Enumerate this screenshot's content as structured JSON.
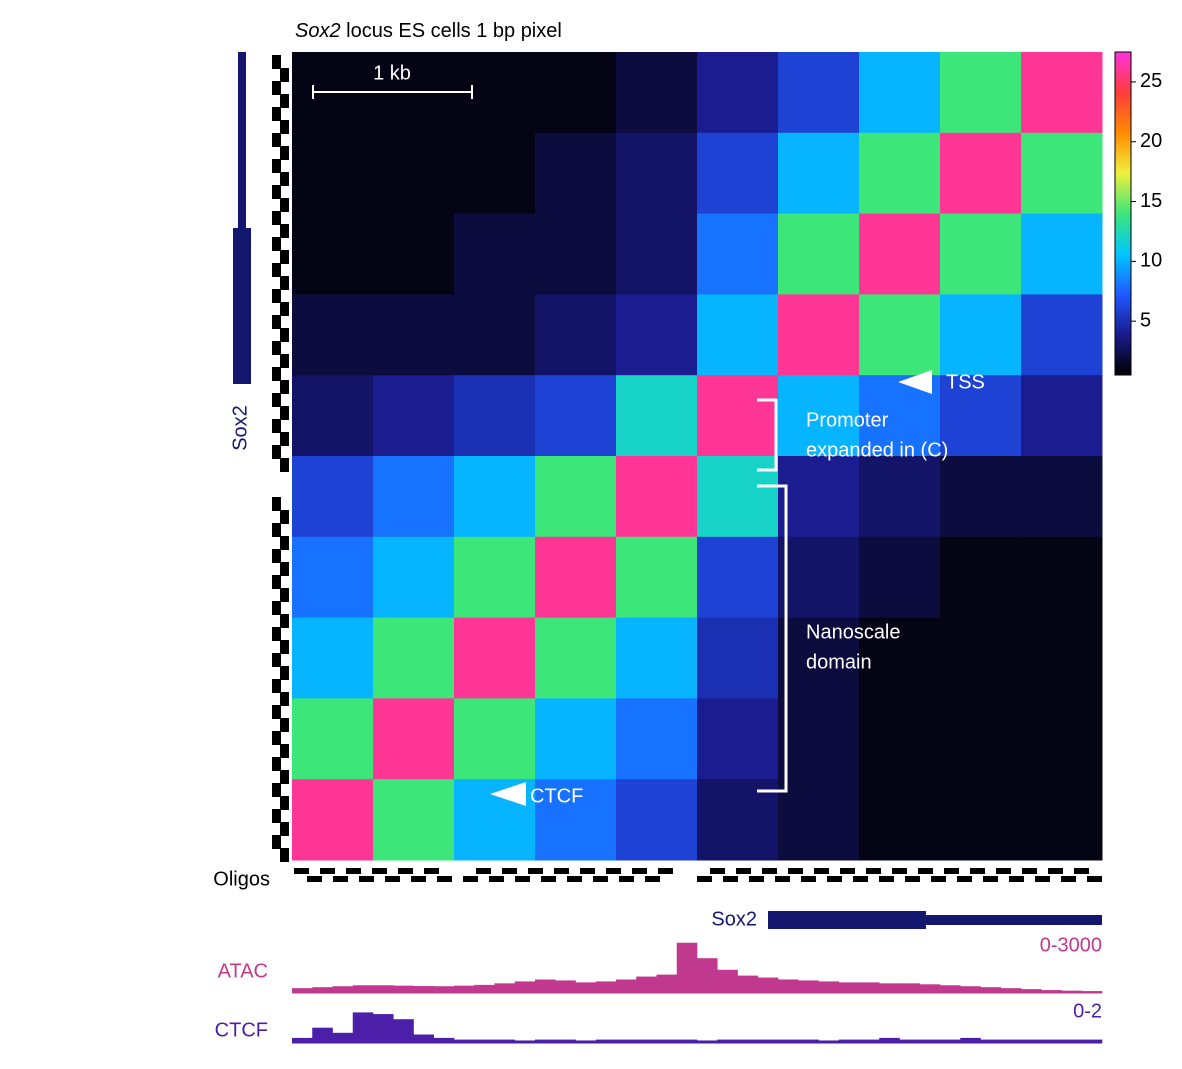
{
  "chart_data": {
    "type": "heatmap",
    "title_italic": "Sox2",
    "title": "locus ES cells 1 bp pixel",
    "scale_bar": "1 kb",
    "matrix": [
      [
        1,
        1,
        1,
        1,
        2,
        4,
        6,
        10,
        14,
        26
      ],
      [
        1,
        1,
        1,
        2,
        3,
        6,
        10,
        14,
        26,
        14
      ],
      [
        1,
        1,
        2,
        2,
        3,
        8,
        14,
        26,
        14,
        10
      ],
      [
        2,
        2,
        2,
        3,
        4,
        10,
        26,
        14,
        10,
        6
      ],
      [
        3,
        4,
        5,
        6,
        12,
        26,
        10,
        8,
        6,
        4
      ],
      [
        6,
        8,
        10,
        14,
        26,
        12,
        4,
        3,
        2,
        2
      ],
      [
        8,
        10,
        14,
        26,
        14,
        6,
        3,
        2,
        1,
        1
      ],
      [
        10,
        14,
        26,
        14,
        10,
        5,
        2,
        1,
        1,
        1
      ],
      [
        14,
        26,
        14,
        10,
        8,
        4,
        2,
        1,
        1,
        1
      ],
      [
        26,
        14,
        10,
        8,
        6,
        3,
        2,
        1,
        1,
        1
      ]
    ],
    "colorscale": [
      "#000000",
      "#1a1a8c",
      "#1e5aff",
      "#00c8ff",
      "#3ce678",
      "#f0f040",
      "#ff8c00",
      "#ff3c3c",
      "#ff32dc"
    ],
    "clim": [
      0.5,
      27.5
    ],
    "cticks": [
      5,
      10,
      15,
      20,
      25
    ],
    "annotations": {
      "tss": "TSS",
      "promoter": [
        "Promoter",
        "expanded in (C)"
      ],
      "domain": [
        "Nanoscale",
        "domain"
      ],
      "ctcf": "CTCF"
    },
    "gene_left": "Sox2",
    "gene_bottom": "Sox2",
    "oligos": "Oligos",
    "tracks": [
      {
        "name": "ATAC",
        "color": "#c0398e",
        "range_label": "0-3000",
        "ylim": [
          0,
          3000
        ],
        "values": [
          250,
          300,
          350,
          400,
          400,
          380,
          360,
          350,
          380,
          420,
          500,
          600,
          700,
          650,
          550,
          600,
          700,
          850,
          950,
          2600,
          1800,
          1200,
          900,
          800,
          700,
          650,
          600,
          550,
          550,
          500,
          500,
          450,
          400,
          350,
          300,
          250,
          200,
          150,
          120,
          100
        ]
      },
      {
        "name": "CTCF",
        "color": "#4b1fa8",
        "range_label": "0-2",
        "ylim": [
          0,
          2
        ],
        "values": [
          0.3,
          0.9,
          0.6,
          1.8,
          1.7,
          1.4,
          0.5,
          0.3,
          0.2,
          0.2,
          0.2,
          0.15,
          0.2,
          0.2,
          0.15,
          0.2,
          0.2,
          0.2,
          0.2,
          0.2,
          0.15,
          0.2,
          0.2,
          0.2,
          0.2,
          0.2,
          0.15,
          0.2,
          0.2,
          0.3,
          0.2,
          0.2,
          0.2,
          0.3,
          0.2,
          0.2,
          0.2,
          0.2,
          0.2,
          0.2
        ]
      }
    ]
  }
}
